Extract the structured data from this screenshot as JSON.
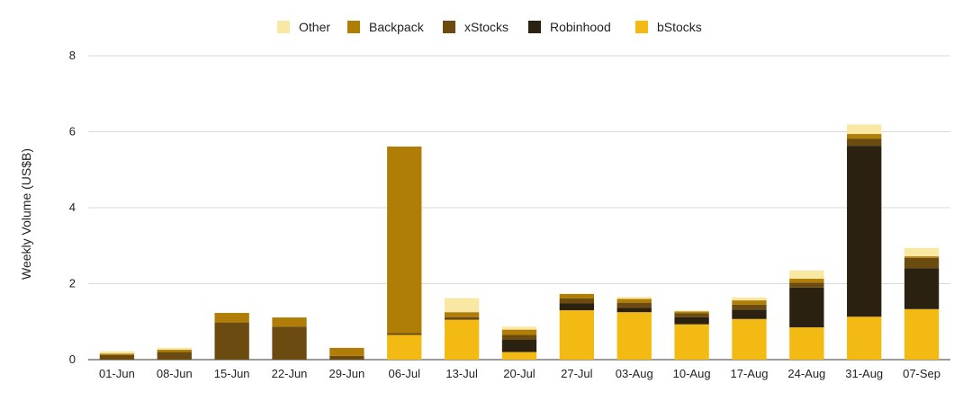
{
  "chart_data": {
    "type": "bar",
    "stacked": true,
    "title": "",
    "xlabel": "",
    "ylabel": "Weekly Volume (US$B)",
    "ylim": [
      0,
      8
    ],
    "yticks": [
      "0",
      "2",
      "4",
      "6",
      "8"
    ],
    "grid": true,
    "legend_position": "top",
    "categories": [
      "01-Jun",
      "08-Jun",
      "15-Jun",
      "22-Jun",
      "29-Jun",
      "06-Jul",
      "13-Jul",
      "20-Jul",
      "27-Jul",
      "03-Aug",
      "10-Aug",
      "17-Aug",
      "24-Aug",
      "31-Aug",
      "07-Sep"
    ],
    "series": [
      {
        "name": "bStocks",
        "color": "#F2BA12",
        "values": [
          0,
          0,
          0,
          0,
          0,
          0.65,
          1.05,
          0.2,
          1.3,
          1.25,
          0.93,
          1.07,
          0.85,
          1.13,
          1.33
        ]
      },
      {
        "name": "Robinhood",
        "color": "#2B2111",
        "values": [
          0,
          0,
          0,
          0,
          0,
          0,
          0,
          0.33,
          0.18,
          0.11,
          0.19,
          0.25,
          1.05,
          4.5,
          1.08
        ]
      },
      {
        "name": "xStocks",
        "color": "#6B4B0F",
        "values": [
          0.12,
          0.2,
          0.98,
          0.87,
          0.1,
          0.05,
          0.07,
          0.12,
          0.13,
          0.14,
          0.1,
          0.13,
          0.13,
          0.19,
          0.27
        ]
      },
      {
        "name": "Backpack",
        "color": "#B07E06",
        "values": [
          0.04,
          0.06,
          0.25,
          0.24,
          0.21,
          4.91,
          0.13,
          0.14,
          0.12,
          0.1,
          0.05,
          0.11,
          0.1,
          0.12,
          0.04
        ]
      },
      {
        "name": "Other",
        "color": "#F9E8A3",
        "values": [
          0.06,
          0.05,
          0,
          0,
          0,
          0,
          0.37,
          0.08,
          0.01,
          0.05,
          0.02,
          0.08,
          0.22,
          0.25,
          0.22
        ]
      }
    ],
    "legend_order": [
      "Other",
      "Backpack",
      "xStocks",
      "Robinhood",
      "bStocks"
    ]
  }
}
